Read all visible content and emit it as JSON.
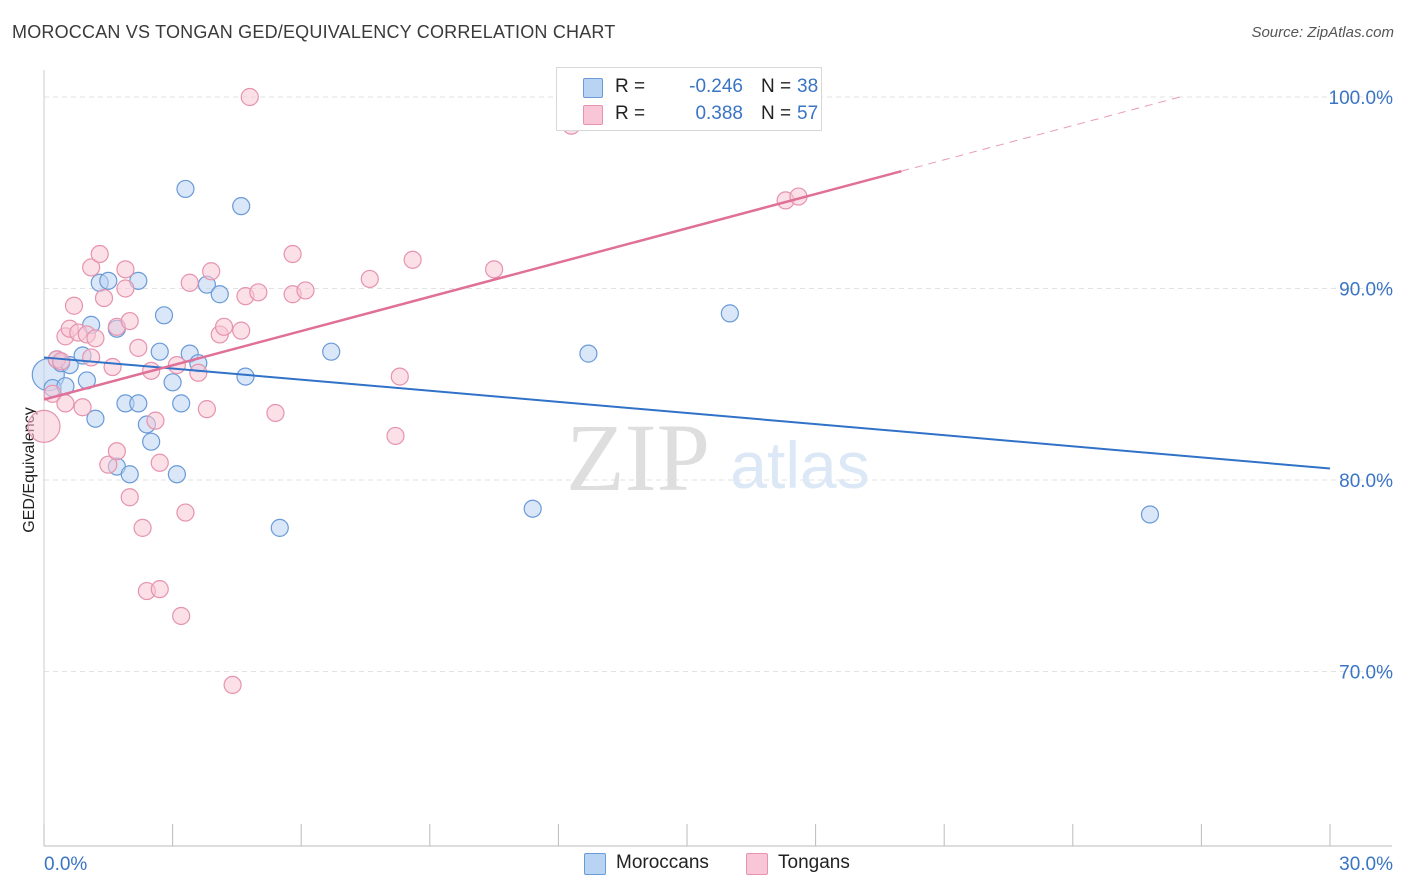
{
  "header": {
    "title": "MOROCCAN VS TONGAN GED/EQUIVALENCY CORRELATION CHART",
    "source": "Source: ZipAtlas.com"
  },
  "colors": {
    "blue_fill": "#b9d3f3",
    "blue_stroke": "#6a9ad8",
    "blue_line": "#2f72c8",
    "pink_fill": "#f8c6d6",
    "pink_stroke": "#e693ae",
    "pink_line": "#e07098",
    "axis_text": "#3a74c4",
    "grid": "#e2e2e2"
  },
  "legend": {
    "blue": {
      "r_label": "R =",
      "r_value": "-0.246",
      "n_label": "N =",
      "n_value": "38"
    },
    "pink": {
      "r_label": "R =",
      "r_value": "0.388",
      "n_label": "N =",
      "n_value": "57"
    }
  },
  "bottom_legend": {
    "moroccans": "Moroccans",
    "tongans": "Tongans"
  },
  "watermark": {
    "zip": "ZIP",
    "atlas": "atlas"
  },
  "chart_data": {
    "type": "scatter",
    "title": "MOROCCAN VS TONGAN GED/EQUIVALENCY CORRELATION CHART",
    "xlabel": "",
    "ylabel": "GED/Equivalency",
    "xlim": [
      0,
      30
    ],
    "ylim": [
      60,
      100.5
    ],
    "x_tick_labels": [
      {
        "value": 0,
        "label": "0.0%"
      },
      {
        "value": 30,
        "label": "30.0%"
      }
    ],
    "y_tick_labels": [
      {
        "value": 100,
        "label": "100.0%"
      },
      {
        "value": 90,
        "label": "90.0%"
      },
      {
        "value": 80,
        "label": "80.0%"
      },
      {
        "value": 70,
        "label": "70.0%"
      }
    ],
    "series": [
      {
        "name": "Moroccans",
        "r": -0.246,
        "n": 38,
        "trend": {
          "x": [
            0,
            30
          ],
          "y": [
            86.4,
            80.6
          ],
          "dashed_from": null
        },
        "points": [
          {
            "x": 0.1,
            "y": 85.5,
            "big": true
          },
          {
            "x": 0.2,
            "y": 84.8
          },
          {
            "x": 0.4,
            "y": 86.1
          },
          {
            "x": 0.6,
            "y": 86.0
          },
          {
            "x": 0.5,
            "y": 84.9
          },
          {
            "x": 0.9,
            "y": 86.5
          },
          {
            "x": 1.0,
            "y": 85.2
          },
          {
            "x": 1.1,
            "y": 88.1
          },
          {
            "x": 1.3,
            "y": 90.3
          },
          {
            "x": 1.5,
            "y": 90.4
          },
          {
            "x": 1.7,
            "y": 87.9
          },
          {
            "x": 1.9,
            "y": 84.0
          },
          {
            "x": 2.2,
            "y": 90.4
          },
          {
            "x": 2.2,
            "y": 84.0
          },
          {
            "x": 2.4,
            "y": 82.9
          },
          {
            "x": 2.5,
            "y": 82.0
          },
          {
            "x": 2.7,
            "y": 86.7
          },
          {
            "x": 2.8,
            "y": 88.6
          },
          {
            "x": 3.0,
            "y": 85.1
          },
          {
            "x": 3.2,
            "y": 84.0
          },
          {
            "x": 3.3,
            "y": 95.2
          },
          {
            "x": 3.4,
            "y": 86.6
          },
          {
            "x": 3.6,
            "y": 86.1
          },
          {
            "x": 3.8,
            "y": 90.2
          },
          {
            "x": 4.1,
            "y": 89.7
          },
          {
            "x": 4.6,
            "y": 94.3
          },
          {
            "x": 4.7,
            "y": 85.4
          },
          {
            "x": 5.5,
            "y": 77.5
          },
          {
            "x": 6.7,
            "y": 86.7
          },
          {
            "x": 11.4,
            "y": 78.5
          },
          {
            "x": 12.7,
            "y": 86.6
          },
          {
            "x": 16.0,
            "y": 88.7
          },
          {
            "x": 25.8,
            "y": 78.2
          },
          {
            "x": 1.7,
            "y": 80.7
          },
          {
            "x": 2.0,
            "y": 80.3
          },
          {
            "x": 3.1,
            "y": 80.3
          },
          {
            "x": 1.2,
            "y": 83.2
          },
          {
            "x": 0.3,
            "y": 86.3
          }
        ]
      },
      {
        "name": "Tongans",
        "r": 0.388,
        "n": 57,
        "trend": {
          "x": [
            0,
            26.5
          ],
          "y": [
            84.2,
            100.0
          ],
          "dashed_from": 20.0
        },
        "points": [
          {
            "x": 0.0,
            "y": 82.8,
            "big": true
          },
          {
            "x": 0.2,
            "y": 84.5
          },
          {
            "x": 0.3,
            "y": 86.3
          },
          {
            "x": 0.5,
            "y": 84.0
          },
          {
            "x": 0.5,
            "y": 87.5
          },
          {
            "x": 0.6,
            "y": 87.9
          },
          {
            "x": 0.7,
            "y": 89.1
          },
          {
            "x": 0.8,
            "y": 87.7
          },
          {
            "x": 0.9,
            "y": 83.8
          },
          {
            "x": 1.0,
            "y": 87.6
          },
          {
            "x": 1.1,
            "y": 86.4
          },
          {
            "x": 1.1,
            "y": 91.1
          },
          {
            "x": 1.2,
            "y": 87.4
          },
          {
            "x": 1.3,
            "y": 91.8
          },
          {
            "x": 1.4,
            "y": 89.5
          },
          {
            "x": 1.5,
            "y": 80.8
          },
          {
            "x": 1.6,
            "y": 85.9
          },
          {
            "x": 1.7,
            "y": 88.0
          },
          {
            "x": 1.7,
            "y": 81.5
          },
          {
            "x": 1.9,
            "y": 91.0
          },
          {
            "x": 1.9,
            "y": 90.0
          },
          {
            "x": 2.0,
            "y": 88.3
          },
          {
            "x": 2.0,
            "y": 79.1
          },
          {
            "x": 2.2,
            "y": 86.9
          },
          {
            "x": 2.3,
            "y": 77.5
          },
          {
            "x": 2.4,
            "y": 74.2
          },
          {
            "x": 2.5,
            "y": 85.7
          },
          {
            "x": 2.6,
            "y": 83.1
          },
          {
            "x": 2.7,
            "y": 74.3
          },
          {
            "x": 2.7,
            "y": 80.9
          },
          {
            "x": 3.1,
            "y": 86.0
          },
          {
            "x": 3.2,
            "y": 72.9
          },
          {
            "x": 3.3,
            "y": 78.3
          },
          {
            "x": 3.4,
            "y": 90.3
          },
          {
            "x": 3.6,
            "y": 85.6
          },
          {
            "x": 3.8,
            "y": 83.7
          },
          {
            "x": 3.9,
            "y": 90.9
          },
          {
            "x": 4.1,
            "y": 87.6
          },
          {
            "x": 4.2,
            "y": 88.0
          },
          {
            "x": 4.4,
            "y": 69.3
          },
          {
            "x": 4.6,
            "y": 87.8
          },
          {
            "x": 4.7,
            "y": 89.6
          },
          {
            "x": 4.8,
            "y": 100.0
          },
          {
            "x": 5.0,
            "y": 89.8
          },
          {
            "x": 5.4,
            "y": 83.5
          },
          {
            "x": 5.8,
            "y": 89.7
          },
          {
            "x": 5.8,
            "y": 91.8
          },
          {
            "x": 6.1,
            "y": 89.9
          },
          {
            "x": 7.6,
            "y": 90.5
          },
          {
            "x": 8.2,
            "y": 82.3
          },
          {
            "x": 8.3,
            "y": 85.4
          },
          {
            "x": 8.6,
            "y": 91.5
          },
          {
            "x": 10.5,
            "y": 91.0
          },
          {
            "x": 12.3,
            "y": 98.5
          },
          {
            "x": 17.3,
            "y": 94.6
          },
          {
            "x": 17.6,
            "y": 94.8
          },
          {
            "x": 0.4,
            "y": 86.2
          }
        ]
      }
    ]
  }
}
